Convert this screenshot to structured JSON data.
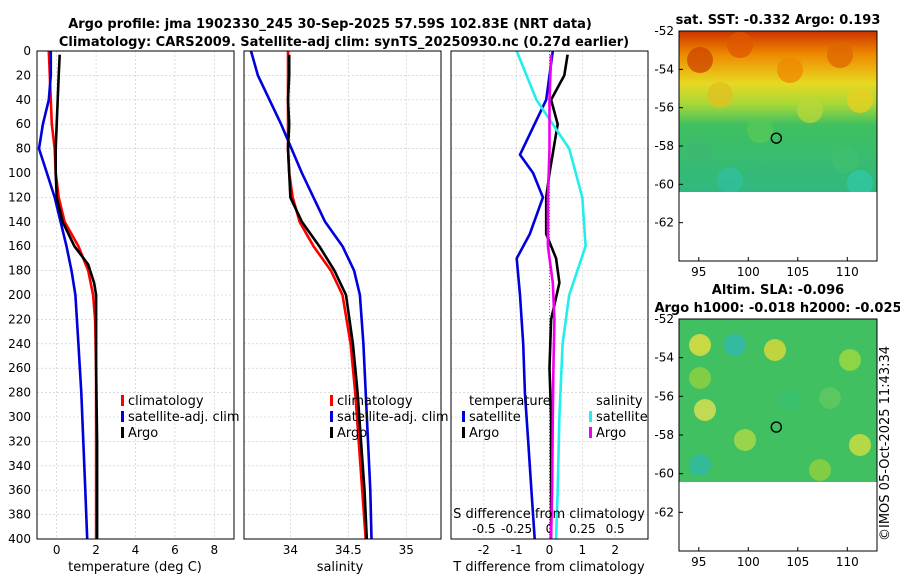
{
  "title_line1": "Argo profile: jma 1902330_245 30-Sep-2025 57.59S 102.83E (NRT data)",
  "title_line2": "Climatology: CARS2009. Satellite-adj clim: synTS_20250930.nc (0.27d earlier)",
  "watermark": "©IMOS 05-Oct-2025 11:43:34",
  "colors": {
    "climatology": "#ff0000",
    "satellite": "#0000dd",
    "argo": "#000000",
    "satellite_salinity": "#22eeee",
    "argo_salinity": "#ee00ee"
  },
  "depth_ticks": [
    "0",
    "20",
    "40",
    "60",
    "80",
    "100",
    "120",
    "140",
    "160",
    "180",
    "200",
    "220",
    "240",
    "260",
    "280",
    "300",
    "320",
    "340",
    "360",
    "380",
    "400"
  ],
  "chart_data": [
    {
      "type": "line",
      "name": "temperature-profile",
      "xlabel": "temperature (deg C)",
      "xlim": [
        -1,
        9
      ],
      "ylim": [
        0,
        400
      ],
      "xticks": [
        "0",
        "2",
        "4",
        "6",
        "8"
      ],
      "legend": [
        "climatology",
        "satellite-adj. clim",
        "Argo"
      ],
      "series": [
        {
          "name": "climatology",
          "color": "#ff0000",
          "points": [
            [
              -0.4,
              0
            ],
            [
              -0.35,
              20
            ],
            [
              -0.3,
              40
            ],
            [
              -0.25,
              60
            ],
            [
              -0.1,
              80
            ],
            [
              -0.05,
              100
            ],
            [
              0.1,
              120
            ],
            [
              0.4,
              140
            ],
            [
              1.1,
              160
            ],
            [
              1.6,
              180
            ],
            [
              1.85,
              200
            ],
            [
              1.95,
              220
            ],
            [
              2.0,
              260
            ],
            [
              2.0,
              300
            ],
            [
              2.0,
              340
            ],
            [
              2.0,
              400
            ]
          ]
        },
        {
          "name": "satellite-adj. clim",
          "color": "#0000dd",
          "points": [
            [
              -0.3,
              0
            ],
            [
              -0.3,
              20
            ],
            [
              -0.4,
              40
            ],
            [
              -0.7,
              60
            ],
            [
              -0.9,
              80
            ],
            [
              -0.5,
              100
            ],
            [
              -0.1,
              120
            ],
            [
              0.2,
              140
            ],
            [
              0.5,
              160
            ],
            [
              0.75,
              180
            ],
            [
              0.95,
              200
            ],
            [
              1.1,
              240
            ],
            [
              1.25,
              280
            ],
            [
              1.35,
              320
            ],
            [
              1.45,
              360
            ],
            [
              1.55,
              400
            ]
          ]
        },
        {
          "name": "Argo",
          "color": "#000000",
          "points": [
            [
              0.15,
              3
            ],
            [
              0.1,
              20
            ],
            [
              0.05,
              40
            ],
            [
              0.0,
              60
            ],
            [
              -0.05,
              80
            ],
            [
              -0.05,
              100
            ],
            [
              0.0,
              120
            ],
            [
              0.3,
              140
            ],
            [
              0.9,
              160
            ],
            [
              1.6,
              175
            ],
            [
              1.9,
              190
            ],
            [
              2.0,
              200
            ],
            [
              2.0,
              260
            ],
            [
              2.05,
              320
            ],
            [
              2.05,
              360
            ],
            [
              2.05,
              400
            ]
          ]
        }
      ]
    },
    {
      "type": "line",
      "name": "salinity-profile",
      "xlabel": "salinity",
      "xlim": [
        33.6,
        35.3
      ],
      "ylim": [
        0,
        400
      ],
      "xticks": [
        "34",
        "34.5",
        "35"
      ],
      "legend": [
        "climatology",
        "satellite-adj. clim",
        "Argo"
      ],
      "series": [
        {
          "name": "climatology",
          "color": "#ff0000",
          "points": [
            [
              33.98,
              0
            ],
            [
              33.98,
              40
            ],
            [
              33.98,
              80
            ],
            [
              33.99,
              100
            ],
            [
              34.02,
              120
            ],
            [
              34.08,
              140
            ],
            [
              34.2,
              160
            ],
            [
              34.35,
              180
            ],
            [
              34.45,
              200
            ],
            [
              34.52,
              240
            ],
            [
              34.56,
              280
            ],
            [
              34.59,
              320
            ],
            [
              34.62,
              360
            ],
            [
              34.65,
              400
            ]
          ]
        },
        {
          "name": "satellite-adj. clim",
          "color": "#0000dd",
          "points": [
            [
              33.66,
              0
            ],
            [
              33.72,
              20
            ],
            [
              33.82,
              40
            ],
            [
              33.92,
              60
            ],
            [
              34.01,
              80
            ],
            [
              34.1,
              100
            ],
            [
              34.2,
              120
            ],
            [
              34.3,
              140
            ],
            [
              34.45,
              160
            ],
            [
              34.55,
              180
            ],
            [
              34.6,
              200
            ],
            [
              34.63,
              240
            ],
            [
              34.65,
              280
            ],
            [
              34.67,
              320
            ],
            [
              34.69,
              360
            ],
            [
              34.7,
              400
            ]
          ]
        },
        {
          "name": "Argo",
          "color": "#000000",
          "points": [
            [
              33.99,
              3
            ],
            [
              33.99,
              20
            ],
            [
              33.98,
              40
            ],
            [
              33.99,
              60
            ],
            [
              33.98,
              80
            ],
            [
              33.99,
              100
            ],
            [
              34.0,
              120
            ],
            [
              34.1,
              140
            ],
            [
              34.25,
              160
            ],
            [
              34.38,
              180
            ],
            [
              34.48,
              200
            ],
            [
              34.54,
              240
            ],
            [
              34.58,
              280
            ],
            [
              34.61,
              320
            ],
            [
              34.64,
              360
            ],
            [
              34.66,
              400
            ]
          ]
        }
      ]
    },
    {
      "type": "line",
      "name": "difference-profile",
      "xlabel": "T difference from climatology",
      "xlabel_top": "S difference from climatology",
      "xlim": [
        -3,
        3
      ],
      "ylim": [
        0,
        400
      ],
      "xticks": [
        "-2",
        "-1",
        "0",
        "1",
        "2"
      ],
      "xticks_top": [
        "-0.5",
        "-0.25",
        "0",
        "0.25",
        "0.5"
      ],
      "legend_left_title": "temperature",
      "legend_right_title": "salinity",
      "legend_left": [
        "satellite",
        "Argo"
      ],
      "legend_right": [
        "satellite",
        "Argo"
      ],
      "series": [
        {
          "name": "satellite (temperature)",
          "color": "#0000dd",
          "points": [
            [
              0.1,
              0
            ],
            [
              -0.1,
              40
            ],
            [
              -0.9,
              85
            ],
            [
              -0.5,
              100
            ],
            [
              -0.2,
              120
            ],
            [
              -0.6,
              150
            ],
            [
              -1.0,
              170
            ],
            [
              -0.9,
              200
            ],
            [
              -0.8,
              240
            ],
            [
              -0.75,
              280
            ],
            [
              -0.65,
              320
            ],
            [
              -0.55,
              360
            ],
            [
              -0.45,
              400
            ]
          ]
        },
        {
          "name": "Argo (temperature)",
          "color": "#000000",
          "points": [
            [
              0.55,
              3
            ],
            [
              0.45,
              20
            ],
            [
              0.05,
              40
            ],
            [
              0.25,
              60
            ],
            [
              0.0,
              100
            ],
            [
              -0.1,
              120
            ],
            [
              -0.1,
              150
            ],
            [
              0.2,
              170
            ],
            [
              0.3,
              190
            ],
            [
              0.05,
              220
            ],
            [
              0.0,
              260
            ],
            [
              0.05,
              300
            ],
            [
              0.05,
              340
            ],
            [
              0.05,
              400
            ]
          ]
        },
        {
          "name": "satellite (salinity)",
          "color": "#22eeee",
          "points": [
            [
              -1.0,
              0
            ],
            [
              -0.4,
              40
            ],
            [
              0.6,
              80
            ],
            [
              1.0,
              120
            ],
            [
              1.1,
              160
            ],
            [
              0.6,
              200
            ],
            [
              0.4,
              240
            ],
            [
              0.3,
              300
            ],
            [
              0.25,
              360
            ],
            [
              0.2,
              400
            ]
          ]
        },
        {
          "name": "Argo (salinity)",
          "color": "#ee00ee",
          "points": [
            [
              0.05,
              3
            ],
            [
              0.0,
              40
            ],
            [
              0.0,
              80
            ],
            [
              -0.05,
              120
            ],
            [
              -0.05,
              160
            ],
            [
              0.1,
              190
            ],
            [
              0.15,
              220
            ],
            [
              0.12,
              260
            ],
            [
              0.1,
              300
            ],
            [
              0.08,
              360
            ],
            [
              0.05,
              400
            ]
          ]
        }
      ]
    },
    {
      "type": "heatmap",
      "name": "sst-map",
      "title": "sat. SST: -0.332  Argo: 0.193",
      "lon_range": [
        93,
        113
      ],
      "lat_range": [
        -64,
        -52
      ],
      "xticks": [
        "95",
        "100",
        "105",
        "110"
      ],
      "yticks": [
        "-52",
        "-54",
        "-56",
        "-58",
        "-60",
        "-62"
      ],
      "marker": {
        "lon": 102.83,
        "lat": -57.59
      }
    },
    {
      "type": "heatmap",
      "name": "sla-map",
      "title_line1": "Altim. SLA: -0.096",
      "title_line2": "Argo h1000: -0.018  h2000: -0.025",
      "lon_range": [
        93,
        113
      ],
      "lat_range": [
        -64,
        -52
      ],
      "xticks": [
        "95",
        "100",
        "105",
        "110"
      ],
      "yticks": [
        "-52",
        "-54",
        "-56",
        "-58",
        "-60",
        "-62"
      ],
      "marker": {
        "lon": 102.83,
        "lat": -57.59
      }
    }
  ]
}
